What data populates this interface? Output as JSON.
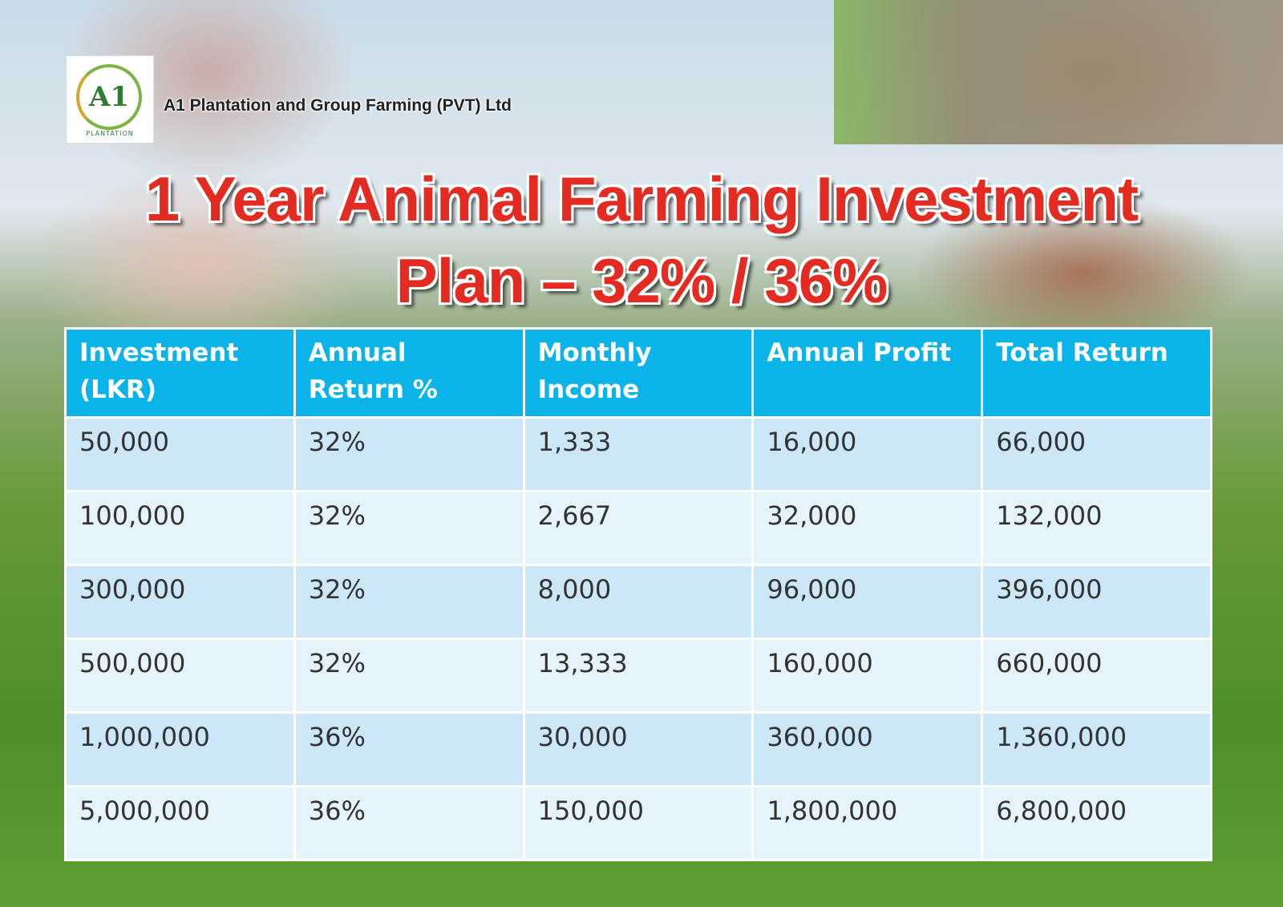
{
  "logo": {
    "mark": "A1",
    "caption": "PLANTATION"
  },
  "header": {
    "company": "A1 Plantation and Group Farming (PVT) Ltd",
    "title_line1": "1 Year Animal Farming Investment",
    "title_line2": "Plan – 32% / 36%"
  },
  "table": {
    "columns": [
      "Investment (LKR)",
      "Annual Return %",
      "Monthly Income",
      "Annual Profit",
      "Total Return"
    ],
    "rows": [
      [
        "50,000",
        "32%",
        "1,333",
        "16,000",
        "66,000"
      ],
      [
        "100,000",
        "32%",
        "2,667",
        "32,000",
        "132,000"
      ],
      [
        "300,000",
        "32%",
        "8,000",
        "96,000",
        "396,000"
      ],
      [
        "500,000",
        "32%",
        "13,333",
        "160,000",
        "660,000"
      ],
      [
        "1,000,000",
        "36%",
        "30,000",
        "360,000",
        "1,360,000"
      ],
      [
        "5,000,000",
        "36%",
        "150,000",
        "1,800,000",
        "6,800,000"
      ]
    ]
  }
}
